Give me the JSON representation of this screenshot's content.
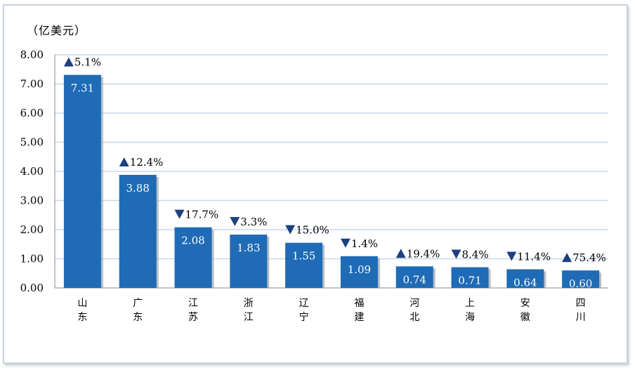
{
  "unit_label": "（亿美元）",
  "chart_data": {
    "type": "bar",
    "ylabel": "（亿美元）",
    "ylim": [
      0,
      8
    ],
    "yticks": [
      "0.00",
      "1.00",
      "2.00",
      "3.00",
      "4.00",
      "5.00",
      "6.00",
      "7.00",
      "8.00"
    ],
    "grid": true,
    "categories": [
      "山东",
      "广东",
      "江苏",
      "浙江",
      "辽宁",
      "福建",
      "河北",
      "上海",
      "安徽",
      "四川"
    ],
    "values": [
      7.31,
      3.88,
      2.08,
      1.83,
      1.55,
      1.09,
      0.74,
      0.71,
      0.64,
      0.6
    ],
    "value_labels": [
      "7.31",
      "3.88",
      "2.08",
      "1.83",
      "1.55",
      "1.09",
      "0.74",
      "0.71",
      "0.64",
      "0.60"
    ],
    "growth": [
      {
        "dir": "up",
        "text": "5.1%"
      },
      {
        "dir": "up",
        "text": "12.4%"
      },
      {
        "dir": "down",
        "text": "17.7%"
      },
      {
        "dir": "down",
        "text": "3.3%"
      },
      {
        "dir": "down",
        "text": "15.0%"
      },
      {
        "dir": "down",
        "text": "1.4%"
      },
      {
        "dir": "up",
        "text": "19.4%"
      },
      {
        "dir": "down",
        "text": "8.4%"
      },
      {
        "dir": "down",
        "text": "11.4%"
      },
      {
        "dir": "up",
        "text": "75.4%"
      }
    ],
    "colors": {
      "bar": "#1f6bb5",
      "bar_shadow": "#9aa3ad",
      "grid": "#c7d8ee",
      "marker": "#1f3f80"
    }
  }
}
